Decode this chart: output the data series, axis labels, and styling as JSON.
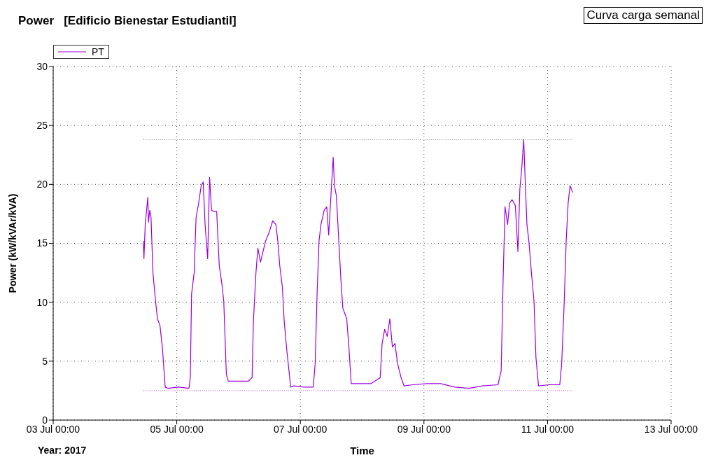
{
  "chart_data": {
    "type": "line",
    "title": "Power   [Edificio Bienestar Estudiantil]",
    "xlabel": "Time",
    "ylabel": "Power (kW/kVAr/kVA)",
    "annotations": [
      "Curva carga semanal",
      "Year: 2017"
    ],
    "legend": "top left",
    "grid": true,
    "marker": "none",
    "xlim": [
      "2017-07-03T00:00",
      "2017-07-13T00:00"
    ],
    "xticks": [
      {
        "value": "2017-07-03T00:00",
        "label": "03 Jul 00:00"
      },
      {
        "value": "2017-07-05T00:00",
        "label": "05 Jul 00:00"
      },
      {
        "value": "2017-07-07T00:00",
        "label": "07 Jul 00:00"
      },
      {
        "value": "2017-07-09T00:00",
        "label": "09 Jul 00:00"
      },
      {
        "value": "2017-07-11T00:00",
        "label": "11 Jul 00:00"
      },
      {
        "value": "2017-07-13T00:00",
        "label": "13 Jul 00:00"
      }
    ],
    "ylim": [
      0,
      30
    ],
    "yticks": [
      0,
      5,
      10,
      15,
      20,
      25,
      30
    ],
    "ref_lines": [
      {
        "axis": "y",
        "value": 23.8,
        "color": "#808080",
        "line_style": "dotted"
      },
      {
        "axis": "y",
        "value": 2.5,
        "color": "#b040e0",
        "line_style": "dotted"
      }
    ],
    "x": [
      "2017-07-04T11:00",
      "2017-07-04T11:15",
      "2017-07-04T11:45",
      "2017-07-04T12:45",
      "2017-07-04T13:00",
      "2017-07-04T13:30",
      "2017-07-04T14:00",
      "2017-07-04T14:45",
      "2017-07-04T15:45",
      "2017-07-04T16:30",
      "2017-07-04T17:30",
      "2017-07-04T18:30",
      "2017-07-04T19:30",
      "2017-07-04T20:30",
      "2017-07-05T00:45",
      "2017-07-05T04:45",
      "2017-07-05T05:15",
      "2017-07-05T05:45",
      "2017-07-05T06:45",
      "2017-07-05T07:30",
      "2017-07-05T08:30",
      "2017-07-05T09:30",
      "2017-07-05T10:15",
      "2017-07-05T11:00",
      "2017-07-05T12:00",
      "2017-07-05T12:45",
      "2017-07-05T13:30",
      "2017-07-05T14:30",
      "2017-07-05T15:30",
      "2017-07-05T16:30",
      "2017-07-05T17:30",
      "2017-07-05T18:15",
      "2017-07-05T19:15",
      "2017-07-05T20:00",
      "2017-07-05T23:45",
      "2017-07-06T03:45",
      "2017-07-06T05:15",
      "2017-07-06T05:45",
      "2017-07-06T06:45",
      "2017-07-06T07:30",
      "2017-07-06T08:30",
      "2017-07-06T09:30",
      "2017-07-06T10:30",
      "2017-07-06T12:00",
      "2017-07-06T13:15",
      "2017-07-06T14:30",
      "2017-07-06T15:15",
      "2017-07-06T16:00",
      "2017-07-06T17:00",
      "2017-07-06T17:45",
      "2017-07-06T18:45",
      "2017-07-06T20:15",
      "2017-07-06T21:30",
      "2017-07-07T01:30",
      "2017-07-07T05:00",
      "2017-07-07T05:45",
      "2017-07-07T06:30",
      "2017-07-07T07:15",
      "2017-07-07T08:00",
      "2017-07-07T09:15",
      "2017-07-07T10:15",
      "2017-07-07T11:00",
      "2017-07-07T12:00",
      "2017-07-07T12:45",
      "2017-07-07T13:15",
      "2017-07-07T14:00",
      "2017-07-07T15:00",
      "2017-07-07T15:45",
      "2017-07-07T16:30",
      "2017-07-07T18:00",
      "2017-07-07T18:45",
      "2017-07-07T19:45",
      "2017-07-07T23:15",
      "2017-07-08T03:30",
      "2017-07-08T07:00",
      "2017-07-08T07:45",
      "2017-07-08T08:45",
      "2017-07-08T09:45",
      "2017-07-08T10:45",
      "2017-07-08T11:45",
      "2017-07-08T12:45",
      "2017-07-08T13:45",
      "2017-07-08T15:00",
      "2017-07-08T16:15",
      "2017-07-08T19:45",
      "2017-07-09T01:15",
      "2017-07-09T06:30",
      "2017-07-09T12:00",
      "2017-07-09T17:30",
      "2017-07-09T22:45",
      "2017-07-10T04:45",
      "2017-07-10T06:00",
      "2017-07-10T06:45",
      "2017-07-10T07:30",
      "2017-07-10T08:30",
      "2017-07-10T09:15",
      "2017-07-10T10:15",
      "2017-07-10T11:30",
      "2017-07-10T12:30",
      "2017-07-10T13:15",
      "2017-07-10T14:00",
      "2017-07-10T14:45",
      "2017-07-10T15:15",
      "2017-07-10T16:00",
      "2017-07-10T16:45",
      "2017-07-10T17:45",
      "2017-07-10T18:45",
      "2017-07-10T19:30",
      "2017-07-10T20:30",
      "2017-07-11T00:45",
      "2017-07-11T04:45",
      "2017-07-11T05:30",
      "2017-07-11T06:30",
      "2017-07-11T07:15",
      "2017-07-11T08:00",
      "2017-07-11T08:45",
      "2017-07-11T09:45"
    ],
    "series": [
      {
        "name": "PT",
        "color": "#9b00e0",
        "values": [
          15.2,
          13.7,
          16.6,
          18.9,
          16.8,
          17.8,
          17.2,
          12.5,
          10.1,
          8.6,
          8.0,
          5.9,
          2.8,
          2.7,
          2.8,
          2.7,
          3.6,
          10.7,
          12.5,
          17.2,
          18.4,
          19.9,
          20.2,
          16.6,
          13.7,
          20.6,
          17.8,
          17.7,
          17.7,
          13.1,
          11.6,
          10.1,
          3.9,
          3.3,
          3.3,
          3.3,
          3.6,
          8.3,
          12.5,
          14.6,
          13.4,
          14.3,
          15.2,
          16.0,
          16.9,
          16.6,
          15.2,
          13.1,
          11.3,
          8.3,
          5.9,
          2.8,
          2.9,
          2.8,
          2.8,
          4.8,
          10.7,
          15.2,
          16.6,
          17.8,
          18.1,
          15.7,
          19.5,
          22.3,
          19.9,
          19.0,
          14.9,
          11.9,
          9.5,
          8.6,
          6.5,
          3.1,
          3.1,
          3.1,
          3.6,
          6.5,
          7.7,
          7.1,
          8.6,
          6.2,
          6.5,
          4.8,
          3.7,
          2.9,
          3.0,
          3.1,
          3.1,
          2.8,
          2.7,
          2.9,
          3.0,
          4.2,
          11.9,
          18.1,
          16.6,
          18.4,
          18.7,
          18.2,
          14.3,
          19.6,
          21.4,
          23.8,
          20.8,
          16.6,
          15.2,
          12.5,
          10.1,
          5.3,
          2.9,
          3.0,
          3.0,
          4.8,
          10.1,
          15.2,
          18.4,
          19.9,
          19.3
        ]
      }
    ]
  }
}
